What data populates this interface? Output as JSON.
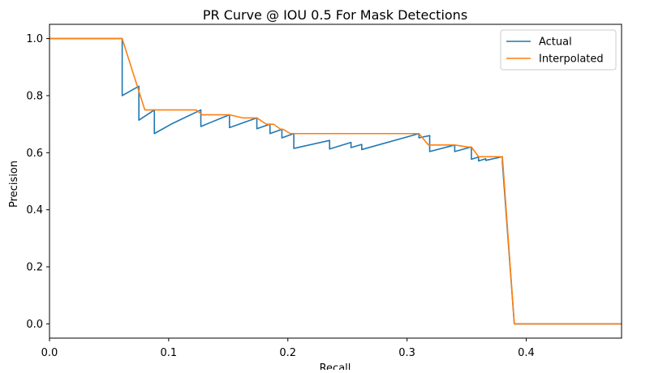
{
  "chart_data": {
    "type": "line",
    "title": "PR Curve @ IOU 0.5 For Mask Detections",
    "xlabel": "Recall",
    "ylabel": "Precision",
    "xlim": [
      0.0,
      0.48
    ],
    "ylim": [
      -0.05,
      1.05
    ],
    "xticks": [
      0.0,
      0.1,
      0.2,
      0.3,
      0.4
    ],
    "xtick_labels": [
      "0.0",
      "0.1",
      "0.2",
      "0.3",
      "0.4"
    ],
    "yticks": [
      0.0,
      0.2,
      0.4,
      0.6,
      0.8,
      1.0
    ],
    "ytick_labels": [
      "0.0",
      "0.2",
      "0.4",
      "0.6",
      "0.8",
      "1.0"
    ],
    "grid": false,
    "legend_position": "top-right",
    "series": [
      {
        "name": "Actual",
        "color": "#1f77b4",
        "points": [
          [
            0.0,
            1.0
          ],
          [
            0.061,
            1.0
          ],
          [
            0.061,
            0.8
          ],
          [
            0.075,
            0.833
          ],
          [
            0.075,
            0.714
          ],
          [
            0.088,
            0.75
          ],
          [
            0.088,
            0.667
          ],
          [
            0.102,
            0.7
          ],
          [
            0.127,
            0.75
          ],
          [
            0.127,
            0.692
          ],
          [
            0.151,
            0.733
          ],
          [
            0.151,
            0.688
          ],
          [
            0.174,
            0.722
          ],
          [
            0.174,
            0.684
          ],
          [
            0.185,
            0.7
          ],
          [
            0.185,
            0.667
          ],
          [
            0.195,
            0.682
          ],
          [
            0.195,
            0.652
          ],
          [
            0.205,
            0.667
          ],
          [
            0.205,
            0.615
          ],
          [
            0.235,
            0.643
          ],
          [
            0.235,
            0.613
          ],
          [
            0.253,
            0.636
          ],
          [
            0.253,
            0.618
          ],
          [
            0.262,
            0.629
          ],
          [
            0.262,
            0.611
          ],
          [
            0.31,
            0.667
          ],
          [
            0.31,
            0.652
          ],
          [
            0.319,
            0.66
          ],
          [
            0.319,
            0.604
          ],
          [
            0.34,
            0.627
          ],
          [
            0.34,
            0.604
          ],
          [
            0.354,
            0.62
          ],
          [
            0.354,
            0.577
          ],
          [
            0.36,
            0.585
          ],
          [
            0.36,
            0.571
          ],
          [
            0.366,
            0.579
          ],
          [
            0.366,
            0.573
          ],
          [
            0.38,
            0.586
          ],
          [
            0.38,
            0.566
          ],
          [
            0.39,
            0.0
          ],
          [
            0.48,
            0.0
          ]
        ]
      },
      {
        "name": "Interpolated",
        "color": "#ff7f0e",
        "points": [
          [
            0.0,
            1.0
          ],
          [
            0.061,
            1.0
          ],
          [
            0.08,
            0.75
          ],
          [
            0.123,
            0.75
          ],
          [
            0.128,
            0.733
          ],
          [
            0.151,
            0.733
          ],
          [
            0.162,
            0.722
          ],
          [
            0.174,
            0.722
          ],
          [
            0.182,
            0.7
          ],
          [
            0.188,
            0.7
          ],
          [
            0.194,
            0.682
          ],
          [
            0.196,
            0.682
          ],
          [
            0.202,
            0.667
          ],
          [
            0.31,
            0.667
          ],
          [
            0.318,
            0.627
          ],
          [
            0.34,
            0.627
          ],
          [
            0.351,
            0.62
          ],
          [
            0.354,
            0.62
          ],
          [
            0.36,
            0.586
          ],
          [
            0.38,
            0.586
          ],
          [
            0.39,
            0.0
          ],
          [
            0.48,
            0.0
          ]
        ]
      }
    ]
  }
}
